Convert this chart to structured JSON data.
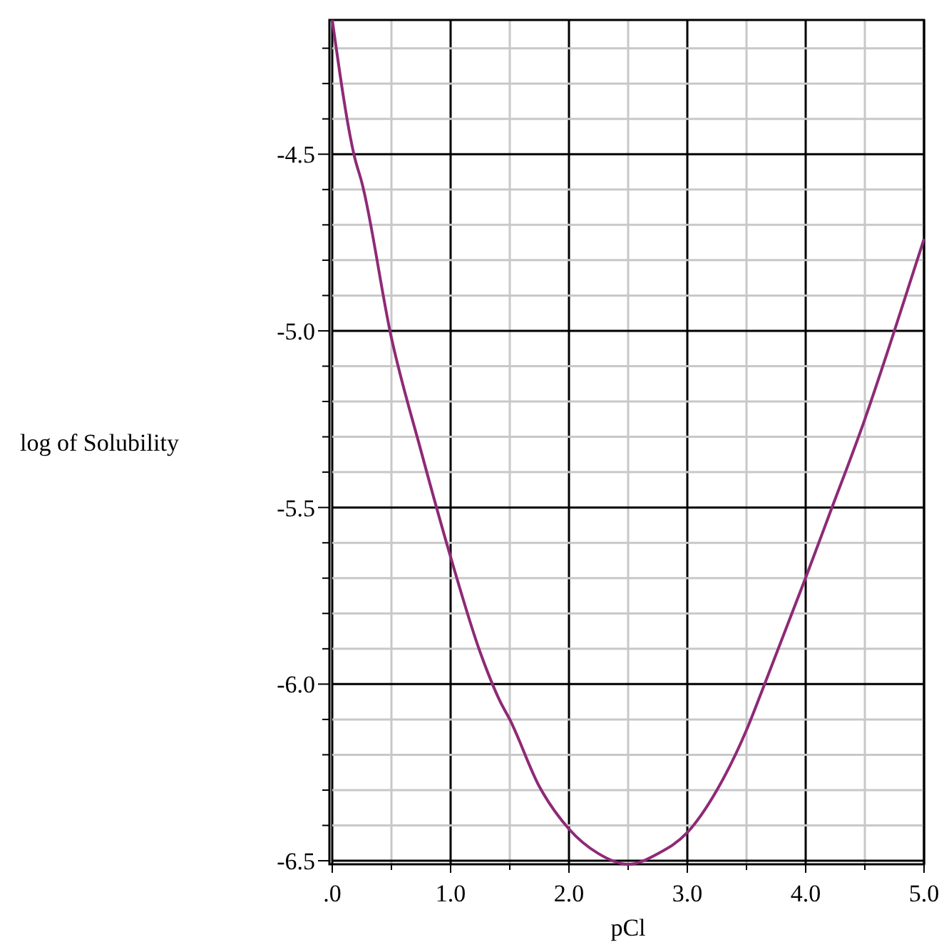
{
  "chart_data": {
    "type": "line",
    "xlabel": "pCl",
    "ylabel": "log of Solubility",
    "xlim": [
      0,
      5
    ],
    "ylim": [
      -6.51,
      -4.12
    ],
    "xticks": [
      {
        "value": 0,
        "label": ".0"
      },
      {
        "value": 0.5,
        "label": null
      },
      {
        "value": 1,
        "label": "1.0"
      },
      {
        "value": 1.5,
        "label": null
      },
      {
        "value": 2,
        "label": "2.0"
      },
      {
        "value": 2.5,
        "label": null
      },
      {
        "value": 3,
        "label": "3.0"
      },
      {
        "value": 3.5,
        "label": null
      },
      {
        "value": 4,
        "label": "4.0"
      },
      {
        "value": 4.5,
        "label": null
      },
      {
        "value": 5,
        "label": "5.0"
      }
    ],
    "yticks": [
      {
        "value": -4.2,
        "label": null
      },
      {
        "value": -4.3,
        "label": null
      },
      {
        "value": -4.4,
        "label": null
      },
      -4.5,
      {
        "value": -4.6,
        "label": null
      },
      {
        "value": -4.7,
        "label": null
      },
      {
        "value": -4.8,
        "label": null
      },
      {
        "value": -4.9,
        "label": null
      },
      {
        "value": -5.0,
        "label": "-5.0"
      },
      {
        "value": -5.1,
        "label": null
      },
      {
        "value": -5.2,
        "label": null
      },
      {
        "value": -5.3,
        "label": null
      },
      {
        "value": -5.4,
        "label": null
      },
      -5.5,
      {
        "value": -5.6,
        "label": null
      },
      {
        "value": -5.7,
        "label": null
      },
      {
        "value": -5.8,
        "label": null
      },
      {
        "value": -5.9,
        "label": null
      },
      {
        "value": -6.0,
        "label": "-6.0"
      },
      {
        "value": -6.1,
        "label": null
      },
      {
        "value": -6.2,
        "label": null
      },
      {
        "value": -6.3,
        "label": null
      },
      {
        "value": -6.4,
        "label": null
      },
      -6.5
    ],
    "grid": true,
    "marker": "none",
    "line_style": "solid",
    "series": [
      {
        "color": "#8e2a76",
        "x": [
          0,
          0.19,
          0.25,
          0.5,
          0.75,
          1.0,
          1.25,
          1.42,
          1.5,
          1.75,
          2.0,
          2.25,
          2.5,
          2.75,
          3.0,
          3.25,
          3.5,
          3.63,
          4.01,
          4.2,
          4.5,
          4.73,
          5.0
        ],
        "values": [
          -4.12,
          -4.51,
          -4.58,
          -5.02,
          -5.34,
          -5.64,
          -5.91,
          -6.05,
          -6.1,
          -6.29,
          -6.41,
          -6.48,
          -6.51,
          -6.48,
          -6.42,
          -6.3,
          -6.13,
          -6.02,
          -5.69,
          -5.52,
          -5.25,
          -5.02,
          -4.74
        ]
      }
    ]
  }
}
